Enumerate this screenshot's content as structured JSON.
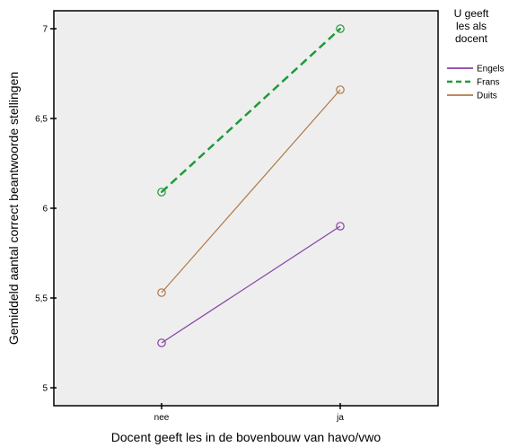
{
  "chart_data": {
    "type": "line",
    "xlabel": "Docent geeft les in de bovenbouw van havo/vwo",
    "ylabel": "Gemiddeld aantal correct beantwoorde stellingen",
    "categories": [
      "nee",
      "ja"
    ],
    "ylim": [
      4.9,
      7.1
    ],
    "yticks": [
      5,
      5.5,
      6,
      6.5,
      7
    ],
    "ytick_labels": [
      "5",
      "5,5",
      "6",
      "6,5",
      "7"
    ],
    "legend": {
      "title_lines": [
        "U geeft",
        "les als",
        "docent"
      ],
      "position": "right"
    },
    "series": [
      {
        "name": "Engels",
        "values": [
          5.25,
          5.9
        ],
        "color": "#8a3fa5",
        "dash": "solid"
      },
      {
        "name": "Frans",
        "values": [
          6.09,
          7.0
        ],
        "color": "#1f9a3a",
        "dash": "dashed"
      },
      {
        "name": "Duits",
        "values": [
          5.53,
          6.66
        ],
        "color": "#b07a48",
        "dash": "solid"
      }
    ],
    "plot_background": "#eeeeee",
    "grid": false
  }
}
